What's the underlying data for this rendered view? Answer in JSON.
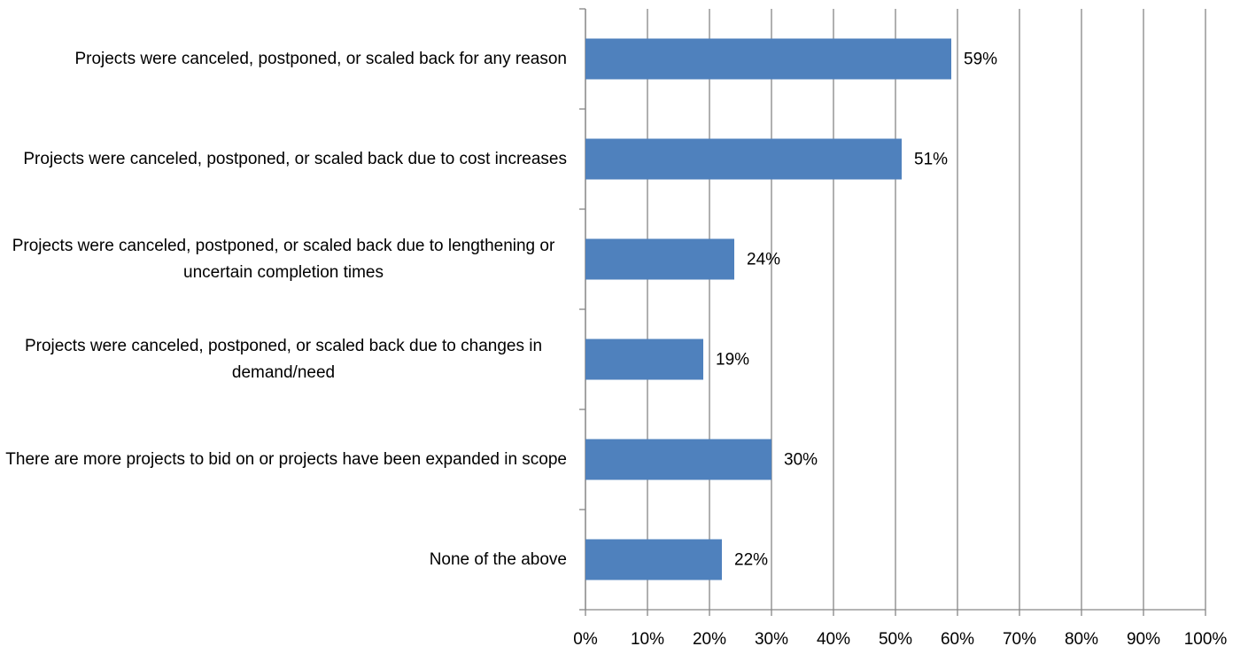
{
  "chart_data": {
    "type": "bar",
    "orientation": "horizontal",
    "categories": [
      "Projects were canceled, postponed, or scaled back for any reason",
      "Projects were canceled, postponed, or scaled back due to cost increases",
      "Projects were canceled, postponed, or scaled back due to lengthening or uncertain completion times",
      "Projects were canceled, postponed, or scaled back due to changes in demand/need",
      "There are more projects to bid on or projects have been expanded in scope",
      "None of the above"
    ],
    "values": [
      59,
      51,
      24,
      19,
      30,
      22
    ],
    "value_labels": [
      "59%",
      "51%",
      "24%",
      "19%",
      "30%",
      "22%"
    ],
    "color": "#4f81bd",
    "xlim": [
      0,
      100
    ],
    "xticks": [
      {
        "value": 0,
        "label": "0%"
      },
      {
        "value": 10,
        "label": "10%"
      },
      {
        "value": 20,
        "label": "20%"
      },
      {
        "value": 30,
        "label": "30%"
      },
      {
        "value": 40,
        "label": "40%"
      },
      {
        "value": 50,
        "label": "50%"
      },
      {
        "value": 60,
        "label": "60%"
      },
      {
        "value": 70,
        "label": "70%"
      },
      {
        "value": 80,
        "label": "80%"
      },
      {
        "value": 90,
        "label": "90%"
      },
      {
        "value": 100,
        "label": "100%"
      }
    ],
    "grid": true
  }
}
